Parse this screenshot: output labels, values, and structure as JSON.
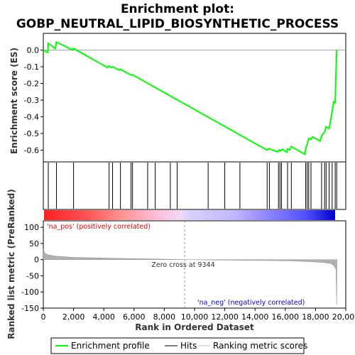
{
  "chart_data": {
    "type": "line",
    "title_line1": "Enrichment plot:",
    "title_line2": "GOBP_NEUTRAL_LIPID_BIOSYNTHETIC_PROCESS",
    "top_panel": {
      "ylabel": "Enrichment score (ES)",
      "ylim": [
        -0.67,
        0.1
      ],
      "yticks": [
        "0.0",
        "-0.1",
        "-0.2",
        "-0.3",
        "-0.4",
        "-0.5",
        "-0.6"
      ],
      "ytick_values": [
        0.0,
        -0.1,
        -0.2,
        -0.3,
        -0.4,
        -0.5,
        -0.6
      ],
      "series_color": "#00ff00",
      "es_curve": [
        [
          0,
          0.0
        ],
        [
          300,
          -0.015
        ],
        [
          330,
          0.04
        ],
        [
          800,
          0.01
        ],
        [
          870,
          0.048
        ],
        [
          1950,
          0.0
        ],
        [
          2000,
          0.01
        ],
        [
          4250,
          -0.105
        ],
        [
          4350,
          -0.095
        ],
        [
          4500,
          -0.105
        ],
        [
          4580,
          -0.1
        ],
        [
          5000,
          -0.12
        ],
        [
          5100,
          -0.115
        ],
        [
          5800,
          -0.15
        ],
        [
          5900,
          -0.148
        ],
        [
          14800,
          -0.6
        ],
        [
          14900,
          -0.59
        ],
        [
          15500,
          -0.61
        ],
        [
          15600,
          -0.598
        ],
        [
          15700,
          -0.605
        ],
        [
          15800,
          -0.595
        ],
        [
          16100,
          -0.612
        ],
        [
          16150,
          -0.592
        ],
        [
          16300,
          -0.598
        ],
        [
          16400,
          -0.578
        ],
        [
          17300,
          -0.625
        ],
        [
          17350,
          -0.59
        ],
        [
          17450,
          -0.565
        ],
        [
          17550,
          -0.53
        ],
        [
          17700,
          -0.535
        ],
        [
          17800,
          -0.52
        ],
        [
          18300,
          -0.545
        ],
        [
          18400,
          -0.515
        ],
        [
          18600,
          -0.49
        ],
        [
          18700,
          -0.46
        ],
        [
          18900,
          -0.47
        ],
        [
          19000,
          -0.42
        ],
        [
          19100,
          -0.37
        ],
        [
          19200,
          -0.31
        ],
        [
          19300,
          -0.315
        ],
        [
          19330,
          -0.22
        ],
        [
          19360,
          -0.11
        ],
        [
          19400,
          0.0
        ]
      ]
    },
    "hits_positions": [
      330,
      870,
      2000,
      4350,
      4580,
      5100,
      5800,
      5900,
      6900,
      7400,
      8400,
      8850,
      10900,
      12000,
      13000,
      14800,
      14950,
      15550,
      15650,
      15750,
      16150,
      16400,
      17350,
      17450,
      17550,
      17700,
      18400,
      18600,
      18700,
      18900,
      19100,
      19300,
      19400
    ],
    "bottom_panel": {
      "ylabel": "Ranked list metric (PreRanked)",
      "xlabel": "Rank in Ordered Dataset",
      "ylim": [
        -150,
        120
      ],
      "yticks": [
        "100",
        "50",
        "0",
        "-50",
        "-100",
        "-150"
      ],
      "ytick_values": [
        100,
        50,
        0,
        -50,
        -100,
        -150
      ],
      "xlim": [
        0,
        20000
      ],
      "xticks": [
        "0",
        "2,000",
        "4,000",
        "6,000",
        "8,000",
        "10,000",
        "12,000",
        "14,000",
        "16,000",
        "18,000",
        "20,000"
      ],
      "xtick_values": [
        0,
        2000,
        4000,
        6000,
        8000,
        10000,
        12000,
        14000,
        16000,
        18000,
        20000
      ],
      "zero_cross_label": "Zero cross at 9344",
      "zero_cross": 9344,
      "pos_label": "'na_pos' (positively correlated)",
      "neg_label": "'na_neg' (negatively correlated)",
      "metric_profile": [
        [
          0,
          32
        ],
        [
          100,
          20
        ],
        [
          300,
          15
        ],
        [
          800,
          11
        ],
        [
          2000,
          7
        ],
        [
          4000,
          5
        ],
        [
          6000,
          3
        ],
        [
          8000,
          1.5
        ],
        [
          9344,
          0
        ],
        [
          11000,
          -1
        ],
        [
          13000,
          -2
        ],
        [
          15000,
          -3
        ],
        [
          16500,
          -4
        ],
        [
          17500,
          -6
        ],
        [
          18500,
          -9
        ],
        [
          19000,
          -12
        ],
        [
          19200,
          -18
        ],
        [
          19350,
          -30
        ],
        [
          19400,
          -140
        ],
        [
          19420,
          0
        ]
      ]
    },
    "legend": {
      "items": [
        "Enrichment profile",
        "Hits",
        "Ranking metric scores"
      ],
      "colors": [
        "#00ff00",
        "#000000",
        "#bbbbbb"
      ]
    },
    "colors": {
      "pos": "#ff0000",
      "neg": "#0000ff",
      "metric_fill": "#b0b0b0"
    }
  }
}
